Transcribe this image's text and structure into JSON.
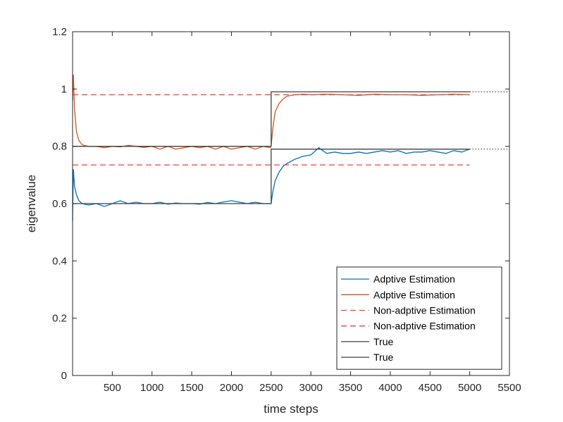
{
  "chart_data": {
    "type": "line",
    "title": "",
    "xlabel": "time steps",
    "ylabel": "eigenvalue",
    "xlim": [
      0,
      5500
    ],
    "ylim": [
      0,
      1.2
    ],
    "x_ticks": [
      500,
      1000,
      1500,
      2000,
      2500,
      3000,
      3500,
      4000,
      4500,
      5000,
      5500
    ],
    "y_ticks": [
      0,
      0.2,
      0.4,
      0.6,
      0.8,
      1,
      1.2
    ],
    "x_tick_labels": [
      "500",
      "1000",
      "1500",
      "2000",
      "2500",
      "3000",
      "3500",
      "4000",
      "4500",
      "5000",
      "5500"
    ],
    "y_tick_labels": [
      "0",
      "0.2",
      "0.4",
      "0.6",
      "0.8",
      "1",
      "1.2"
    ],
    "grid": false,
    "legend_position": "bottom-right",
    "series": [
      {
        "name": "Adptive Estimation",
        "color": "#0072BD",
        "style": "solid",
        "x": [
          0,
          10,
          25,
          50,
          80,
          120,
          200,
          300,
          400,
          500,
          600,
          700,
          800,
          900,
          1000,
          1100,
          1200,
          1300,
          1400,
          1500,
          1600,
          1700,
          1800,
          1900,
          2000,
          2100,
          2200,
          2300,
          2400,
          2490,
          2500,
          2520,
          2550,
          2600,
          2650,
          2700,
          2800,
          2900,
          3000,
          3100,
          3200,
          3300,
          3400,
          3500,
          3600,
          3700,
          3800,
          3900,
          4000,
          4100,
          4200,
          4300,
          4400,
          4500,
          4600,
          4700,
          4800,
          4900,
          5000
        ],
        "y": [
          0.54,
          0.72,
          0.66,
          0.63,
          0.61,
          0.6,
          0.595,
          0.6,
          0.59,
          0.6,
          0.61,
          0.6,
          0.605,
          0.6,
          0.6,
          0.605,
          0.598,
          0.602,
          0.6,
          0.6,
          0.598,
          0.604,
          0.6,
          0.606,
          0.61,
          0.605,
          0.6,
          0.605,
          0.6,
          0.6,
          0.6,
          0.64,
          0.68,
          0.71,
          0.73,
          0.74,
          0.755,
          0.765,
          0.77,
          0.795,
          0.775,
          0.78,
          0.775,
          0.775,
          0.78,
          0.775,
          0.78,
          0.785,
          0.78,
          0.785,
          0.775,
          0.78,
          0.78,
          0.785,
          0.78,
          0.775,
          0.785,
          0.78,
          0.79
        ]
      },
      {
        "name": "Adptive Estimation",
        "color": "#D95319",
        "style": "solid",
        "x": [
          0,
          10,
          25,
          50,
          80,
          120,
          200,
          300,
          400,
          500,
          600,
          700,
          800,
          900,
          1000,
          1100,
          1200,
          1300,
          1400,
          1500,
          1600,
          1700,
          1800,
          1900,
          2000,
          2100,
          2200,
          2300,
          2400,
          2490,
          2500,
          2520,
          2550,
          2600,
          2650,
          2700,
          2800,
          2900,
          3000,
          3200,
          3400,
          3600,
          3800,
          4000,
          4200,
          4400,
          4600,
          4800,
          5000
        ],
        "y": [
          0.96,
          1.05,
          0.93,
          0.85,
          0.82,
          0.805,
          0.8,
          0.8,
          0.795,
          0.8,
          0.798,
          0.803,
          0.8,
          0.796,
          0.8,
          0.79,
          0.8,
          0.79,
          0.795,
          0.8,
          0.795,
          0.8,
          0.79,
          0.8,
          0.79,
          0.795,
          0.8,
          0.79,
          0.8,
          0.795,
          0.8,
          0.86,
          0.92,
          0.95,
          0.965,
          0.975,
          0.98,
          0.982,
          0.98,
          0.982,
          0.98,
          0.978,
          0.982,
          0.98,
          0.98,
          0.978,
          0.98,
          0.982,
          0.98
        ]
      },
      {
        "name": "Non-adptive Estimation",
        "color": "#FF3B3B",
        "style": "dashed",
        "x": [
          0,
          5000
        ],
        "y": [
          0.98,
          0.98
        ]
      },
      {
        "name": "Non-adptive Estimation",
        "color": "#FF3B3B",
        "style": "dashed",
        "x": [
          0,
          5000
        ],
        "y": [
          0.735,
          0.735
        ]
      },
      {
        "name": "True",
        "color": "#404040",
        "style": "solid",
        "x": [
          0,
          2500,
          2500,
          5000
        ],
        "y": [
          0.8,
          0.8,
          0.99,
          0.99
        ]
      },
      {
        "name": "True",
        "color": "#404040",
        "style": "solid",
        "x": [
          0,
          2500,
          2500,
          5000
        ],
        "y": [
          0.6,
          0.6,
          0.79,
          0.79
        ]
      }
    ],
    "extensions": [
      {
        "color": "#404040",
        "style": "dotted",
        "x": [
          5000,
          5500
        ],
        "y": [
          0.99,
          0.99
        ]
      },
      {
        "color": "#404040",
        "style": "dotted",
        "x": [
          5000,
          5500
        ],
        "y": [
          0.79,
          0.79
        ]
      }
    ]
  }
}
